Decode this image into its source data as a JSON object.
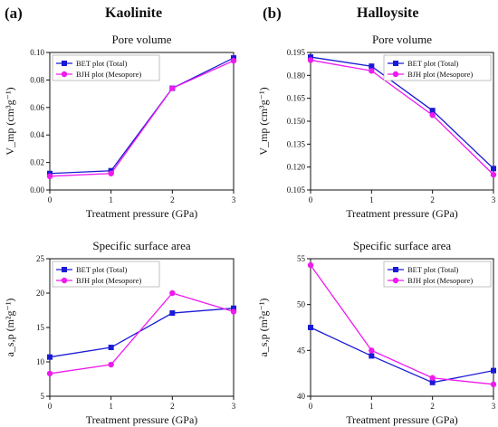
{
  "figure": {
    "panel_a": "(a)",
    "panel_b": "(b)",
    "mineral_a": "Kaolinite",
    "mineral_b": "Halloysite"
  },
  "colors": {
    "bet": "#1a1ad6",
    "bjh": "#ee1aee"
  },
  "chart_data": [
    {
      "id": "kao-pore",
      "type": "line",
      "title": "Pore volume",
      "xlabel": "Treatment pressure (GPa)",
      "ylabel": "V_mp (cm³g⁻¹)",
      "xlim": [
        0,
        3
      ],
      "ylim": [
        0.0,
        0.1
      ],
      "xticks": [
        "0",
        "1",
        "2",
        "3"
      ],
      "yticks": [
        "0.00",
        "0.02",
        "0.04",
        "0.06",
        "0.08",
        "0.10"
      ],
      "legend_position": "top-left",
      "x": [
        0,
        1,
        2,
        3
      ],
      "series": [
        {
          "name": "BET plot (Total)",
          "values": [
            0.012,
            0.014,
            0.074,
            0.096
          ]
        },
        {
          "name": "BJH plot (Mesopore)",
          "values": [
            0.01,
            0.012,
            0.074,
            0.094
          ]
        }
      ]
    },
    {
      "id": "hal-pore",
      "type": "line",
      "title": "Pore volume",
      "xlabel": "Treatment pressure (GPa)",
      "ylabel": "V_mp (cm³g⁻¹)",
      "xlim": [
        0,
        3
      ],
      "ylim": [
        0.105,
        0.195
      ],
      "xticks": [
        "0",
        "1",
        "2",
        "3"
      ],
      "yticks": [
        "0.105",
        "0.120",
        "0.135",
        "0.150",
        "0.165",
        "0.180",
        "0.195"
      ],
      "legend_position": "top-right",
      "x": [
        0,
        1,
        2,
        3
      ],
      "series": [
        {
          "name": "BET plot (Total)",
          "values": [
            0.192,
            0.186,
            0.157,
            0.119
          ]
        },
        {
          "name": "BJH plot (Mesopore)",
          "values": [
            0.19,
            0.183,
            0.154,
            0.115
          ]
        }
      ]
    },
    {
      "id": "kao-ssa",
      "type": "line",
      "title": "Specific surface area",
      "xlabel": "Treatment pressure (GPa)",
      "ylabel": "a_s,p (m²g⁻¹)",
      "xlim": [
        0,
        3
      ],
      "ylim": [
        5,
        25
      ],
      "xticks": [
        "0",
        "1",
        "2",
        "3"
      ],
      "yticks": [
        "5",
        "10",
        "15",
        "20",
        "25"
      ],
      "legend_position": "top-left",
      "x": [
        0,
        1,
        2,
        3
      ],
      "series": [
        {
          "name": "BET plot (Total)",
          "values": [
            10.7,
            12.1,
            17.1,
            17.8
          ]
        },
        {
          "name": "BJH plot (Mesopore)",
          "values": [
            8.3,
            9.6,
            20.0,
            17.3
          ]
        }
      ]
    },
    {
      "id": "hal-ssa",
      "type": "line",
      "title": "Specific surface area",
      "xlabel": "Treatment pressure (GPa)",
      "ylabel": "a_s,p (m²g⁻¹)",
      "xlim": [
        0,
        3
      ],
      "ylim": [
        40,
        55
      ],
      "xticks": [
        "0",
        "1",
        "2",
        "3"
      ],
      "yticks": [
        "40",
        "45",
        "50",
        "55"
      ],
      "legend_position": "top-right",
      "x": [
        0,
        1,
        2,
        3
      ],
      "series": [
        {
          "name": "BET plot (Total)",
          "values": [
            47.5,
            44.4,
            41.5,
            42.8
          ]
        },
        {
          "name": "BJH plot (Mesopore)",
          "values": [
            54.3,
            45.0,
            42.0,
            41.3
          ]
        }
      ]
    }
  ]
}
